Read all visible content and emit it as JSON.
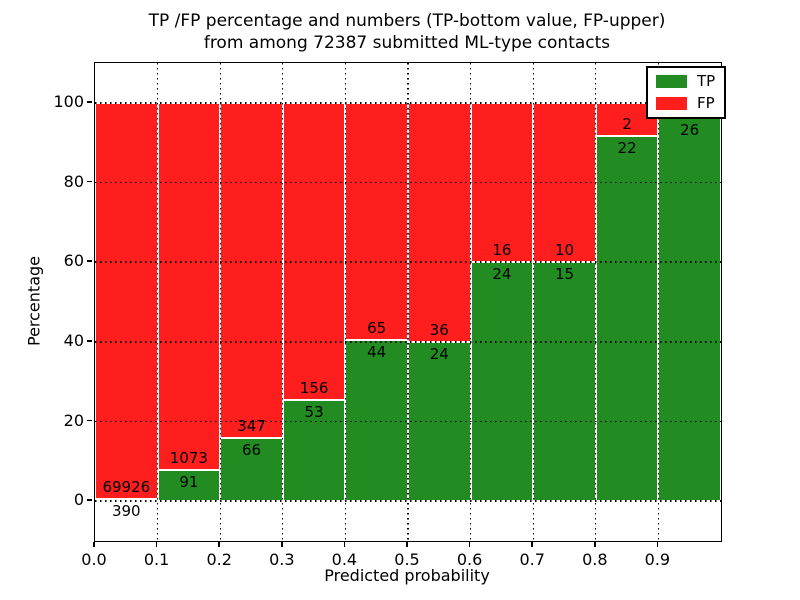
{
  "chart_data": {
    "type": "bar",
    "stacked": true,
    "title_line1": "TP /FP percentage and numbers (TP-bottom value, FP-upper)",
    "title_line2": "from among 72387 submitted ML-type contacts",
    "total_submitted": 72387,
    "xlabel": "Predicted probability",
    "ylabel": "Percentage",
    "xlim": [
      0.0,
      1.0
    ],
    "ylim": [
      -10,
      110
    ],
    "x_ticks": [
      "0.0",
      "0.1",
      "0.2",
      "0.3",
      "0.4",
      "0.5",
      "0.6",
      "0.7",
      "0.8",
      "0.9"
    ],
    "x_tick_values": [
      0.0,
      0.1,
      0.2,
      0.3,
      0.4,
      0.5,
      0.6,
      0.7,
      0.8,
      0.9
    ],
    "y_ticks": [
      0,
      20,
      40,
      60,
      80,
      100
    ],
    "grid": true,
    "grid_style": "dotted",
    "legend": {
      "position": "upper right",
      "entries": [
        {
          "label": "TP",
          "color": "#228b22"
        },
        {
          "label": "FP",
          "color": "#ff1e1e"
        }
      ]
    },
    "bins": [
      {
        "range": [
          0.0,
          0.1
        ],
        "tp": 390,
        "fp": 69926,
        "tp_pct": 0.55
      },
      {
        "range": [
          0.1,
          0.2
        ],
        "tp": 91,
        "fp": 1073,
        "tp_pct": 7.82
      },
      {
        "range": [
          0.2,
          0.3
        ],
        "tp": 66,
        "fp": 347,
        "tp_pct": 15.98
      },
      {
        "range": [
          0.3,
          0.4
        ],
        "tp": 53,
        "fp": 156,
        "tp_pct": 25.36
      },
      {
        "range": [
          0.4,
          0.5
        ],
        "tp": 44,
        "fp": 65,
        "tp_pct": 40.37
      },
      {
        "range": [
          0.5,
          0.6
        ],
        "tp": 24,
        "fp": 36,
        "tp_pct": 40.0
      },
      {
        "range": [
          0.6,
          0.7
        ],
        "tp": 24,
        "fp": 16,
        "tp_pct": 60.0
      },
      {
        "range": [
          0.7,
          0.8
        ],
        "tp": 15,
        "fp": 10,
        "tp_pct": 60.0
      },
      {
        "range": [
          0.8,
          0.9
        ],
        "tp": 22,
        "fp": 2,
        "tp_pct": 91.67
      },
      {
        "range": [
          0.9,
          1.0
        ],
        "tp": 26,
        "fp": null,
        "tp_pct": 96.3
      }
    ],
    "colors": {
      "tp": "#228b22",
      "fp": "#ff1e1e",
      "bar_edge": "#ffffff",
      "grid": "#000000",
      "text": "#000000",
      "background": "#ffffff"
    }
  }
}
